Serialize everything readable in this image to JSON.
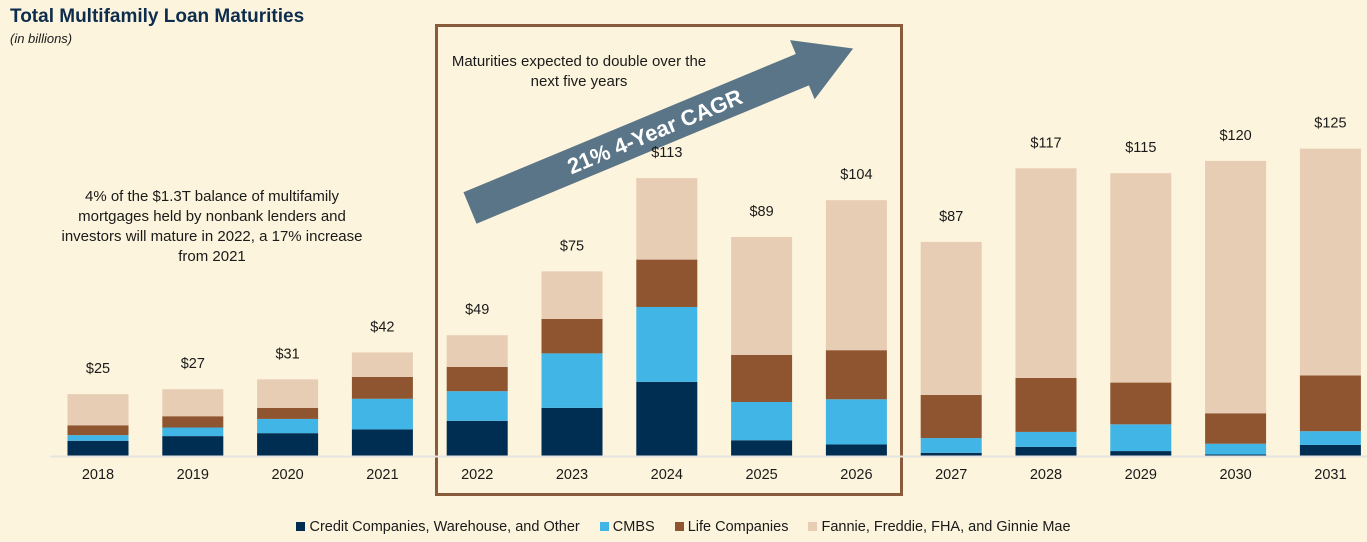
{
  "chart_data": {
    "type": "bar",
    "stacked": true,
    "title": "Total Multifamily Loan Maturities",
    "subtitle": "(in billions)",
    "categories": [
      "2018",
      "2019",
      "2020",
      "2021",
      "2022",
      "2023",
      "2024",
      "2025",
      "2026",
      "2027",
      "2028",
      "2029",
      "2030",
      "2031"
    ],
    "totals_labels": [
      "$25",
      "$27",
      "$31",
      "$42",
      "$49",
      "$75",
      "$113",
      "$89",
      "$104",
      "$87",
      "$117",
      "$115",
      "$120",
      "$125"
    ],
    "series": [
      {
        "name": "Credit Companies, Warehouse, and Other",
        "color": "#002d52",
        "values": [
          6.0,
          7.9,
          9.1,
          10.6,
          14.1,
          19.4,
          30.0,
          6.2,
          4.5,
          1.1,
          3.5,
          1.8,
          0.4,
          4.3
        ]
      },
      {
        "name": "CMBS",
        "color": "#41b5e5",
        "values": [
          2.3,
          3.5,
          5.8,
          12.5,
          12.1,
          22.2,
          30.5,
          15.6,
          18.4,
          6.0,
          6.1,
          10.9,
          4.4,
          5.6
        ]
      },
      {
        "name": "Life Companies",
        "color": "#8e5530",
        "values": [
          4.0,
          4.6,
          4.5,
          8.9,
          9.9,
          14.0,
          19.3,
          19.2,
          20.0,
          17.6,
          22.0,
          17.0,
          12.4,
          22.7
        ]
      },
      {
        "name": "Fannie, Freddie, FHA, and Ginnie Mae",
        "color": "#e8cdb5",
        "values": [
          12.7,
          11.0,
          11.6,
          10.0,
          12.9,
          19.4,
          33.2,
          48.0,
          61.1,
          62.3,
          85.4,
          85.3,
          102.8,
          92.4
        ]
      }
    ],
    "ylim": [
      0,
      130
    ],
    "grid": false,
    "legend": "bottom",
    "annotations": {
      "left_note": "4% of the $1.3T balance of multifamily mortgages held by nonbank lenders and investors will mature in 2022, a 17% increase from 2021",
      "box_note": "Maturities expected to double over the next five years",
      "arrow_label": "21% 4-Year CAGR"
    },
    "colors": {
      "background": "#fcf4dc",
      "highlight_box": "#8a5a3c",
      "arrow": "#5a7587",
      "title": "#0e2d4e"
    }
  }
}
